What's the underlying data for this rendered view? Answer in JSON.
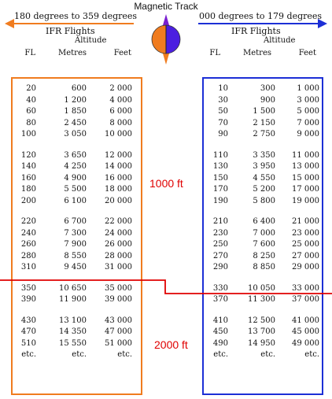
{
  "title": "Magnetic Track",
  "colors": {
    "orange": "#f07c1f",
    "blue": "#1c2fd6",
    "red": "#e00000"
  },
  "left": {
    "range": "180 degrees to 359 degrees",
    "flights": "IFR Flights",
    "altitude": "Altitude",
    "headers": {
      "fl": "FL",
      "metres": "Metres",
      "feet": "Feet"
    },
    "groups": [
      [
        [
          "20",
          "600",
          "2 000"
        ],
        [
          "40",
          "1 200",
          "4 000"
        ],
        [
          "60",
          "1 850",
          "6 000"
        ],
        [
          "80",
          "2 450",
          "8 000"
        ],
        [
          "100",
          "3 050",
          "10 000"
        ]
      ],
      [
        [
          "120",
          "3 650",
          "12 000"
        ],
        [
          "140",
          "4 250",
          "14 000"
        ],
        [
          "160",
          "4 900",
          "16 000"
        ],
        [
          "180",
          "5 500",
          "18 000"
        ],
        [
          "200",
          "6 100",
          "20 000"
        ]
      ],
      [
        [
          "220",
          "6 700",
          "22 000"
        ],
        [
          "240",
          "7 300",
          "24 000"
        ],
        [
          "260",
          "7 900",
          "26 000"
        ],
        [
          "280",
          "8 550",
          "28 000"
        ],
        [
          "310",
          "9 450",
          "31 000"
        ]
      ],
      [
        [
          "350",
          "10 650",
          "35 000"
        ],
        [
          "390",
          "11 900",
          "39 000"
        ]
      ],
      [
        [
          "430",
          "13 100",
          "43 000"
        ],
        [
          "470",
          "14 350",
          "47 000"
        ],
        [
          "510",
          "15 550",
          "51 000"
        ],
        [
          "etc.",
          "etc.",
          "etc."
        ]
      ]
    ]
  },
  "right": {
    "range": "000 degrees to 179 degrees",
    "flights": "IFR Flights",
    "altitude": "Altitude",
    "headers": {
      "fl": "FL",
      "metres": "Metres",
      "feet": "Feet"
    },
    "groups": [
      [
        [
          "10",
          "300",
          "1 000"
        ],
        [
          "30",
          "900",
          "3 000"
        ],
        [
          "50",
          "1 500",
          "5 000"
        ],
        [
          "70",
          "2 150",
          "7 000"
        ],
        [
          "90",
          "2 750",
          "9 000"
        ]
      ],
      [
        [
          "110",
          "3 350",
          "11 000"
        ],
        [
          "130",
          "3 950",
          "13 000"
        ],
        [
          "150",
          "4 550",
          "15 000"
        ],
        [
          "170",
          "5 200",
          "17 000"
        ],
        [
          "190",
          "5 800",
          "19 000"
        ]
      ],
      [
        [
          "210",
          "6 400",
          "21 000"
        ],
        [
          "230",
          "7 000",
          "23 000"
        ],
        [
          "250",
          "7 600",
          "25 000"
        ],
        [
          "270",
          "8 250",
          "27 000"
        ],
        [
          "290",
          "8 850",
          "29 000"
        ]
      ],
      [
        [
          "330",
          "10 050",
          "33 000"
        ],
        [
          "370",
          "11 300",
          "37 000"
        ]
      ],
      [
        [
          "410",
          "12 500",
          "41 000"
        ],
        [
          "450",
          "13 700",
          "45 000"
        ],
        [
          "490",
          "14 950",
          "49 000"
        ],
        [
          "etc.",
          "etc.",
          "etc."
        ]
      ]
    ]
  },
  "separation_labels": {
    "lower": "1000 ft",
    "upper": "2000 ft"
  }
}
